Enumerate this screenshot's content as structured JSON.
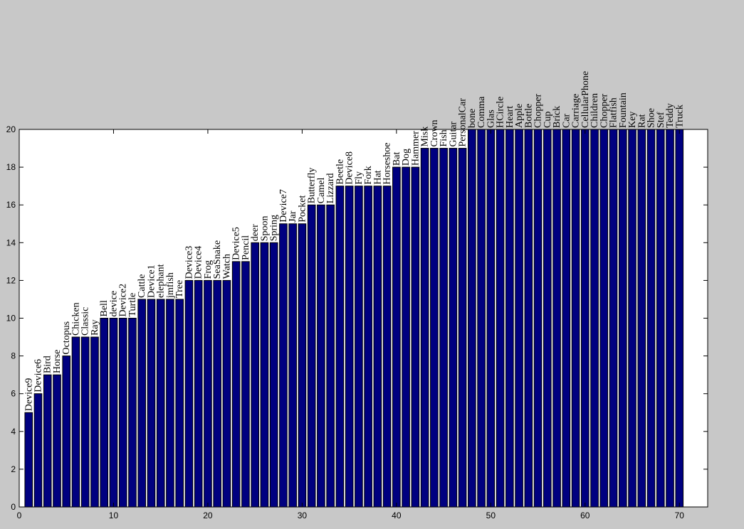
{
  "chart_data": {
    "type": "bar",
    "title": "",
    "xlabel": "",
    "ylabel": "",
    "xlim": [
      0,
      73
    ],
    "ylim": [
      0,
      20
    ],
    "x_ticks": [
      0,
      10,
      20,
      30,
      40,
      50,
      60,
      70
    ],
    "y_ticks": [
      0,
      2,
      4,
      6,
      8,
      10,
      12,
      14,
      16,
      18,
      20
    ],
    "grid": false,
    "bar_color": "#000080",
    "categories": [
      "Device9",
      "Device6",
      "Bird",
      "Horse",
      "Octopus",
      "Chicken",
      "Classic",
      "Ray",
      "Bell",
      "device",
      "Device2",
      "Turtle",
      "Cattle",
      "Device1",
      "elephant",
      "jmfish",
      "Tree",
      "Device3",
      "Device4",
      "Frog",
      "SeaSnake",
      "Watch",
      "Device5",
      "Pencil",
      "deer",
      "Spoon",
      "Spring",
      "Device7",
      "Jar",
      "Pocket",
      "Butterfly",
      "Camel",
      "Lizzard",
      "Beetle",
      "Device8",
      "Fly",
      "Fork",
      "Hat",
      "Horseshoe",
      "Bat",
      "Dog",
      "Hammer",
      "Misk",
      "Crown",
      "Fish",
      "Guitar",
      "PersonalCar",
      "bone",
      "Comma",
      "Glas",
      "HCircle",
      "Heart",
      "Apple",
      "Bottle",
      "Chopper",
      "Cup",
      "Brick",
      "Car",
      "Carriage",
      "CellularPhone",
      "Children",
      "Chopper",
      "Flatfish",
      "Fountain",
      "Key",
      "Rat",
      "Shoe",
      "Stef",
      "Teddy",
      "Truck"
    ],
    "values": [
      5,
      6,
      7,
      7,
      8,
      9,
      9,
      9,
      10,
      10,
      10,
      10,
      11,
      11,
      11,
      11,
      11,
      12,
      12,
      12,
      12,
      12,
      13,
      13,
      14,
      14,
      14,
      15,
      15,
      15,
      16,
      16,
      16,
      17,
      17,
      17,
      17,
      17,
      17,
      18,
      18,
      18,
      19,
      19,
      19,
      19,
      19,
      20,
      20,
      20,
      20,
      20,
      20,
      20,
      20,
      20,
      20,
      20,
      20,
      20,
      20,
      20,
      20,
      20,
      20,
      20,
      20,
      20,
      20,
      20
    ]
  }
}
